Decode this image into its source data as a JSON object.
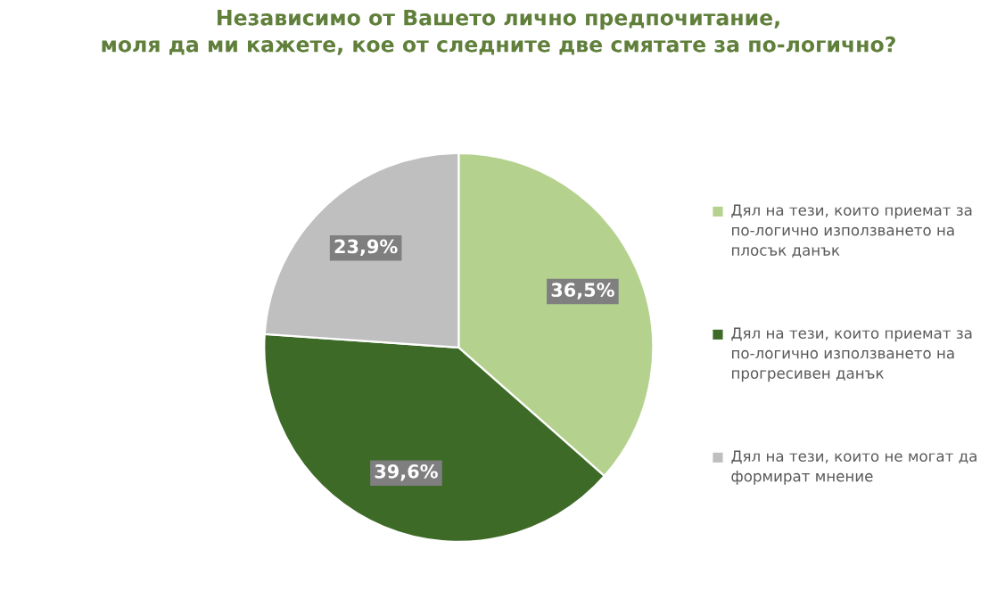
{
  "chart_data": {
    "type": "pie",
    "title": "Независимо от Вашето лично предпочитание,\nмоля да ми кажете, кое от следните две смятате за по-логично?",
    "categories": [
      "Дял на тези, които приемат за по-логично използването на плосък данък",
      "Дял на тези, които приемат за по-логично използването на прогресивен данък",
      "Дял на тези, които не могат да формират мнение"
    ],
    "values": [
      36.5,
      39.6,
      23.9
    ],
    "colors": [
      "#b4d28e",
      "#3e6a27",
      "#bfbfbf"
    ],
    "value_labels": [
      "36,5%",
      "39,6%",
      "23,9%"
    ],
    "legend": "right"
  }
}
